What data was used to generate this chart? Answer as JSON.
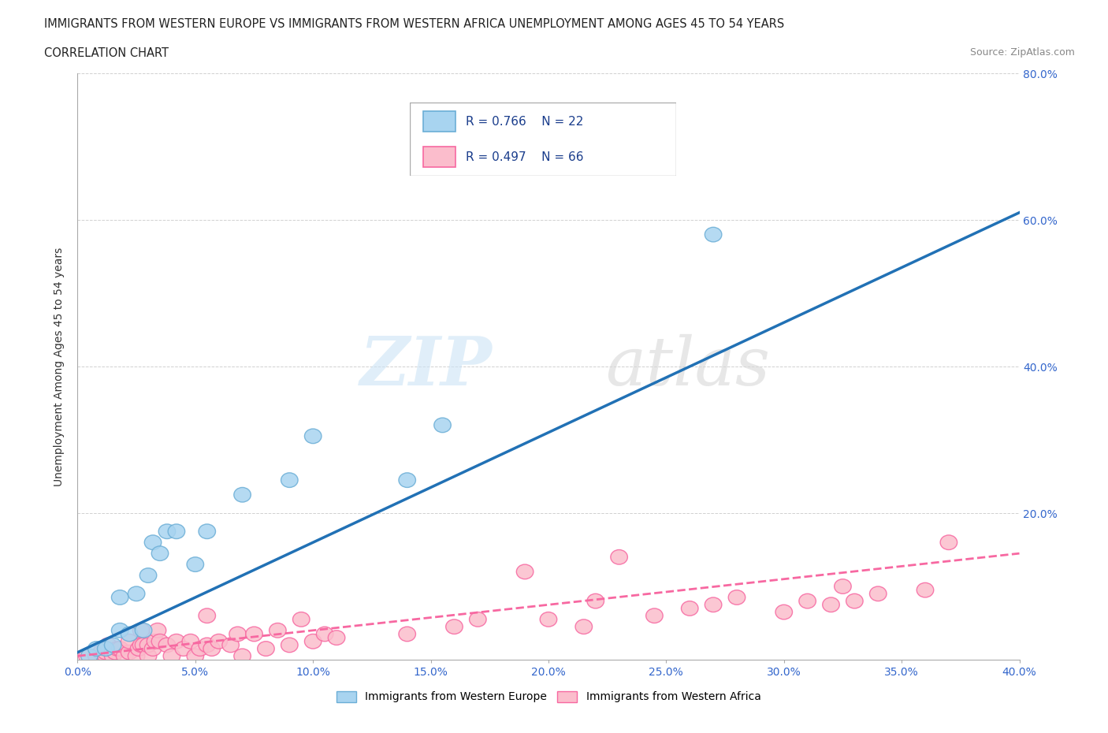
{
  "title_line1": "IMMIGRANTS FROM WESTERN EUROPE VS IMMIGRANTS FROM WESTERN AFRICA UNEMPLOYMENT AMONG AGES 45 TO 54 YEARS",
  "title_line2": "CORRELATION CHART",
  "source_text": "Source: ZipAtlas.com",
  "ylabel": "Unemployment Among Ages 45 to 54 years",
  "xlim": [
    0.0,
    0.4
  ],
  "ylim": [
    0.0,
    0.8
  ],
  "xticks": [
    0.0,
    0.05,
    0.1,
    0.15,
    0.2,
    0.25,
    0.3,
    0.35,
    0.4
  ],
  "yticks_right": [
    0.2,
    0.4,
    0.6,
    0.8
  ],
  "yticks_grid": [
    0.2,
    0.4,
    0.6,
    0.8
  ],
  "r_blue": 0.766,
  "n_blue": 22,
  "r_pink": 0.497,
  "n_pink": 66,
  "legend_label_blue": "Immigrants from Western Europe",
  "legend_label_pink": "Immigrants from Western Africa",
  "blue_color_face": "#a8d4f0",
  "blue_color_edge": "#6baed6",
  "pink_color_face": "#fbbdcc",
  "pink_color_edge": "#f768a1",
  "blue_line_color": "#2171b5",
  "pink_line_color": "#f768a1",
  "tick_color": "#3366cc",
  "grid_color": "#cccccc",
  "blue_scatter_x": [
    0.005,
    0.008,
    0.012,
    0.015,
    0.018,
    0.018,
    0.022,
    0.025,
    0.028,
    0.03,
    0.032,
    0.035,
    0.038,
    0.042,
    0.05,
    0.055,
    0.07,
    0.09,
    0.1,
    0.14,
    0.155,
    0.27
  ],
  "blue_scatter_y": [
    0.005,
    0.015,
    0.015,
    0.02,
    0.04,
    0.085,
    0.035,
    0.09,
    0.04,
    0.115,
    0.16,
    0.145,
    0.175,
    0.175,
    0.13,
    0.175,
    0.225,
    0.245,
    0.305,
    0.245,
    0.32,
    0.58
  ],
  "pink_scatter_x": [
    0.004,
    0.008,
    0.01,
    0.012,
    0.012,
    0.013,
    0.015,
    0.016,
    0.017,
    0.018,
    0.02,
    0.022,
    0.022,
    0.025,
    0.026,
    0.027,
    0.027,
    0.028,
    0.03,
    0.03,
    0.032,
    0.033,
    0.034,
    0.035,
    0.038,
    0.04,
    0.042,
    0.045,
    0.048,
    0.05,
    0.052,
    0.055,
    0.055,
    0.057,
    0.06,
    0.065,
    0.068,
    0.07,
    0.075,
    0.08,
    0.085,
    0.09,
    0.095,
    0.1,
    0.105,
    0.11,
    0.14,
    0.16,
    0.17,
    0.19,
    0.2,
    0.215,
    0.22,
    0.23,
    0.245,
    0.26,
    0.27,
    0.28,
    0.3,
    0.31,
    0.32,
    0.325,
    0.33,
    0.34,
    0.36,
    0.37
  ],
  "pink_scatter_y": [
    0.005,
    0.005,
    0.01,
    0.005,
    0.01,
    0.02,
    0.005,
    0.01,
    0.015,
    0.015,
    0.005,
    0.01,
    0.025,
    0.005,
    0.015,
    0.02,
    0.04,
    0.02,
    0.005,
    0.02,
    0.015,
    0.025,
    0.04,
    0.025,
    0.02,
    0.005,
    0.025,
    0.015,
    0.025,
    0.005,
    0.015,
    0.02,
    0.06,
    0.015,
    0.025,
    0.02,
    0.035,
    0.005,
    0.035,
    0.015,
    0.04,
    0.02,
    0.055,
    0.025,
    0.035,
    0.03,
    0.035,
    0.045,
    0.055,
    0.12,
    0.055,
    0.045,
    0.08,
    0.14,
    0.06,
    0.07,
    0.075,
    0.085,
    0.065,
    0.08,
    0.075,
    0.1,
    0.08,
    0.09,
    0.095,
    0.16
  ],
  "blue_line_x0": 0.0,
  "blue_line_y0": 0.01,
  "blue_line_x1": 0.4,
  "blue_line_y1": 0.61,
  "pink_line_x0": 0.0,
  "pink_line_y0": 0.005,
  "pink_line_x1": 0.4,
  "pink_line_y1": 0.145
}
